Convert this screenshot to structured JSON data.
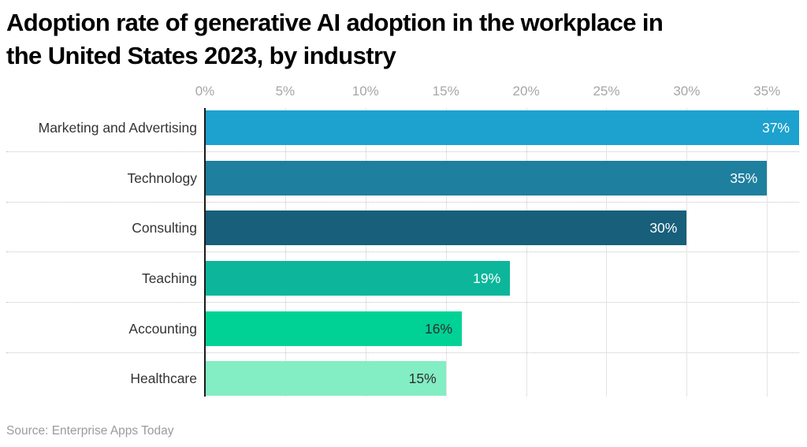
{
  "title": {
    "line1": "Adoption rate of generative AI adoption in the workplace in",
    "line2": "the United States 2023, by industry"
  },
  "source": "Source: Enterprise Apps Today",
  "chart_data": {
    "type": "bar",
    "orientation": "horizontal",
    "title": "Adoption rate of generative AI adoption in the workplace in the United States 2023, by industry",
    "categories": [
      "Marketing and Advertising",
      "Technology",
      "Consulting",
      "Teaching",
      "Accounting",
      "Healthcare"
    ],
    "values": [
      37,
      35,
      30,
      19,
      16,
      15
    ],
    "value_labels": [
      "37%",
      "35%",
      "30%",
      "19%",
      "16%",
      "15%"
    ],
    "bar_colors": [
      "#1da1ce",
      "#1f7f9e",
      "#175f7a",
      "#0db69a",
      "#00d296",
      "#83edc4"
    ],
    "value_label_colors": [
      "#ffffff",
      "#ffffff",
      "#ffffff",
      "#ffffff",
      "#2f2f2f",
      "#2f2f2f"
    ],
    "x_ticks": [
      0,
      5,
      10,
      15,
      20,
      25,
      30,
      35
    ],
    "x_tick_labels": [
      "0%",
      "5%",
      "10%",
      "15%",
      "20%",
      "25%",
      "30%",
      "35%"
    ],
    "xlim": [
      0,
      37
    ],
    "xlabel": "",
    "ylabel": "",
    "grid": true,
    "legend": false
  }
}
